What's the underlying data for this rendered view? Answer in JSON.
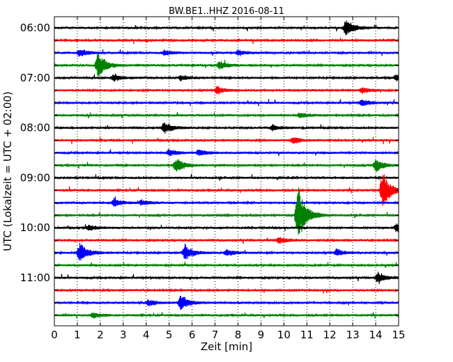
{
  "chart_data": {
    "type": "line",
    "chart_kind": "helicorder (seismogram drum plot)",
    "title": "BW.BE1..HHZ 2016-08-11",
    "xlabel": "Zeit  [min]",
    "ylabel": "UTC (Lokalzeit = UTC + 02:00)",
    "xlim": [
      0,
      15
    ],
    "x_ticks": [
      "0",
      "1",
      "2",
      "3",
      "4",
      "5",
      "6",
      "7",
      "8",
      "9",
      "10",
      "11",
      "12",
      "13",
      "14",
      "15"
    ],
    "x_grid": "dotted vertical lines at each minute",
    "y_tick_labels": [
      "06:00",
      "07:00",
      "08:00",
      "09:00",
      "10:00",
      "11:00"
    ],
    "line_interval_minutes": 15,
    "start_time_utc": "06:00",
    "line_color_cycle": [
      "#000000",
      "#ff0000",
      "#0000ff",
      "#008000"
    ],
    "traces": [
      {
        "start": "06:00",
        "events": [
          {
            "t": 12.7,
            "amp": 0.6
          }
        ]
      },
      {
        "start": "06:15",
        "events": []
      },
      {
        "start": "06:30",
        "events": [
          {
            "t": 1.1,
            "amp": 0.3
          },
          {
            "t": 4.8,
            "amp": 0.2
          },
          {
            "t": 8.0,
            "amp": 0.2
          }
        ]
      },
      {
        "start": "06:45",
        "events": [
          {
            "t": 1.9,
            "amp": 1.0
          },
          {
            "t": 7.2,
            "amp": 0.3
          }
        ]
      },
      {
        "start": "07:00",
        "events": [
          {
            "t": 2.6,
            "amp": 0.25
          },
          {
            "t": 5.5,
            "amp": 0.2
          },
          {
            "t": 14.9,
            "amp": 0.25
          }
        ]
      },
      {
        "start": "07:15",
        "events": [
          {
            "t": 7.1,
            "amp": 0.3
          },
          {
            "t": 13.4,
            "amp": 0.2
          }
        ]
      },
      {
        "start": "07:30",
        "events": [
          {
            "t": 13.4,
            "amp": 0.25
          }
        ]
      },
      {
        "start": "07:45",
        "events": [
          {
            "t": 10.7,
            "amp": 0.2
          }
        ]
      },
      {
        "start": "08:00",
        "events": [
          {
            "t": 4.8,
            "amp": 0.45
          },
          {
            "t": 9.5,
            "amp": 0.2
          }
        ]
      },
      {
        "start": "08:15",
        "events": [
          {
            "t": 10.4,
            "amp": 0.25
          }
        ]
      },
      {
        "start": "08:30",
        "events": [
          {
            "t": 5.0,
            "amp": 0.25
          },
          {
            "t": 6.3,
            "amp": 0.25
          }
        ]
      },
      {
        "start": "08:45",
        "events": [
          {
            "t": 5.3,
            "amp": 0.55
          },
          {
            "t": 14.0,
            "amp": 0.45
          }
        ]
      },
      {
        "start": "09:00",
        "events": []
      },
      {
        "start": "09:15",
        "events": [
          {
            "t": 14.3,
            "amp": 1.4
          }
        ]
      },
      {
        "start": "09:30",
        "events": [
          {
            "t": 2.6,
            "amp": 0.3
          },
          {
            "t": 3.8,
            "amp": 0.2
          }
        ]
      },
      {
        "start": "09:45",
        "events": [
          {
            "t": 10.6,
            "amp": 2.2
          }
        ]
      },
      {
        "start": "10:00",
        "events": [
          {
            "t": 1.5,
            "amp": 0.2
          },
          {
            "t": 14.9,
            "amp": 0.3
          }
        ]
      },
      {
        "start": "10:15",
        "events": [
          {
            "t": 9.8,
            "amp": 0.25
          }
        ]
      },
      {
        "start": "10:30",
        "events": [
          {
            "t": 1.1,
            "amp": 0.8
          },
          {
            "t": 5.7,
            "amp": 0.6
          },
          {
            "t": 7.5,
            "amp": 0.25
          },
          {
            "t": 12.3,
            "amp": 0.25
          }
        ]
      },
      {
        "start": "10:45",
        "events": []
      },
      {
        "start": "11:00",
        "events": [
          {
            "t": 14.1,
            "amp": 0.4
          }
        ]
      },
      {
        "start": "11:15",
        "events": []
      },
      {
        "start": "11:30",
        "events": [
          {
            "t": 4.1,
            "amp": 0.25
          },
          {
            "t": 5.5,
            "amp": 0.6
          }
        ]
      },
      {
        "start": "11:45",
        "events": [
          {
            "t": 1.7,
            "amp": 0.2
          }
        ]
      }
    ]
  }
}
